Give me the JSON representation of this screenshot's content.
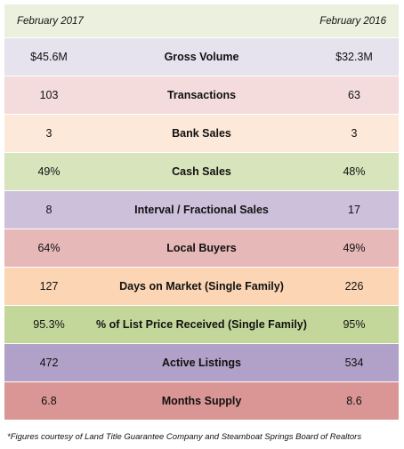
{
  "header": {
    "left_label": "February 2017",
    "right_label": "February 2016",
    "color": "#ebf1de"
  },
  "rows": [
    {
      "metric": "Gross Volume",
      "value_2017": "$45.6M",
      "value_2016": "$32.3M",
      "color": "#e6e2ee"
    },
    {
      "metric": "Transactions",
      "value_2017": "103",
      "value_2016": "63",
      "color": "#f3dcdb"
    },
    {
      "metric": "Bank Sales",
      "value_2017": "3",
      "value_2016": "3",
      "color": "#fde9d9"
    },
    {
      "metric": "Cash Sales",
      "value_2017": "49%",
      "value_2016": "48%",
      "color": "#d8e4bc"
    },
    {
      "metric": "Interval / Fractional Sales",
      "value_2017": "8",
      "value_2016": "17",
      "color": "#ccc0da"
    },
    {
      "metric": "Local Buyers",
      "value_2017": "64%",
      "value_2016": "49%",
      "color": "#e6b8b7"
    },
    {
      "metric": "Days on Market (Single Family)",
      "value_2017": "127",
      "value_2016": "226",
      "color": "#fcd5b4"
    },
    {
      "metric": "% of List Price Received (Single Family)",
      "value_2017": "95.3%",
      "value_2016": "95%",
      "color": "#c4d79b"
    },
    {
      "metric": "Active Listings",
      "value_2017": "472",
      "value_2016": "534",
      "color": "#b1a0c7"
    },
    {
      "metric": "Months Supply",
      "value_2017": "6.8",
      "value_2016": "8.6",
      "color": "#da9694"
    }
  ],
  "footnote": "*Figures courtesy of Land Title Guarantee Company and Steamboat Springs Board of Realtors"
}
